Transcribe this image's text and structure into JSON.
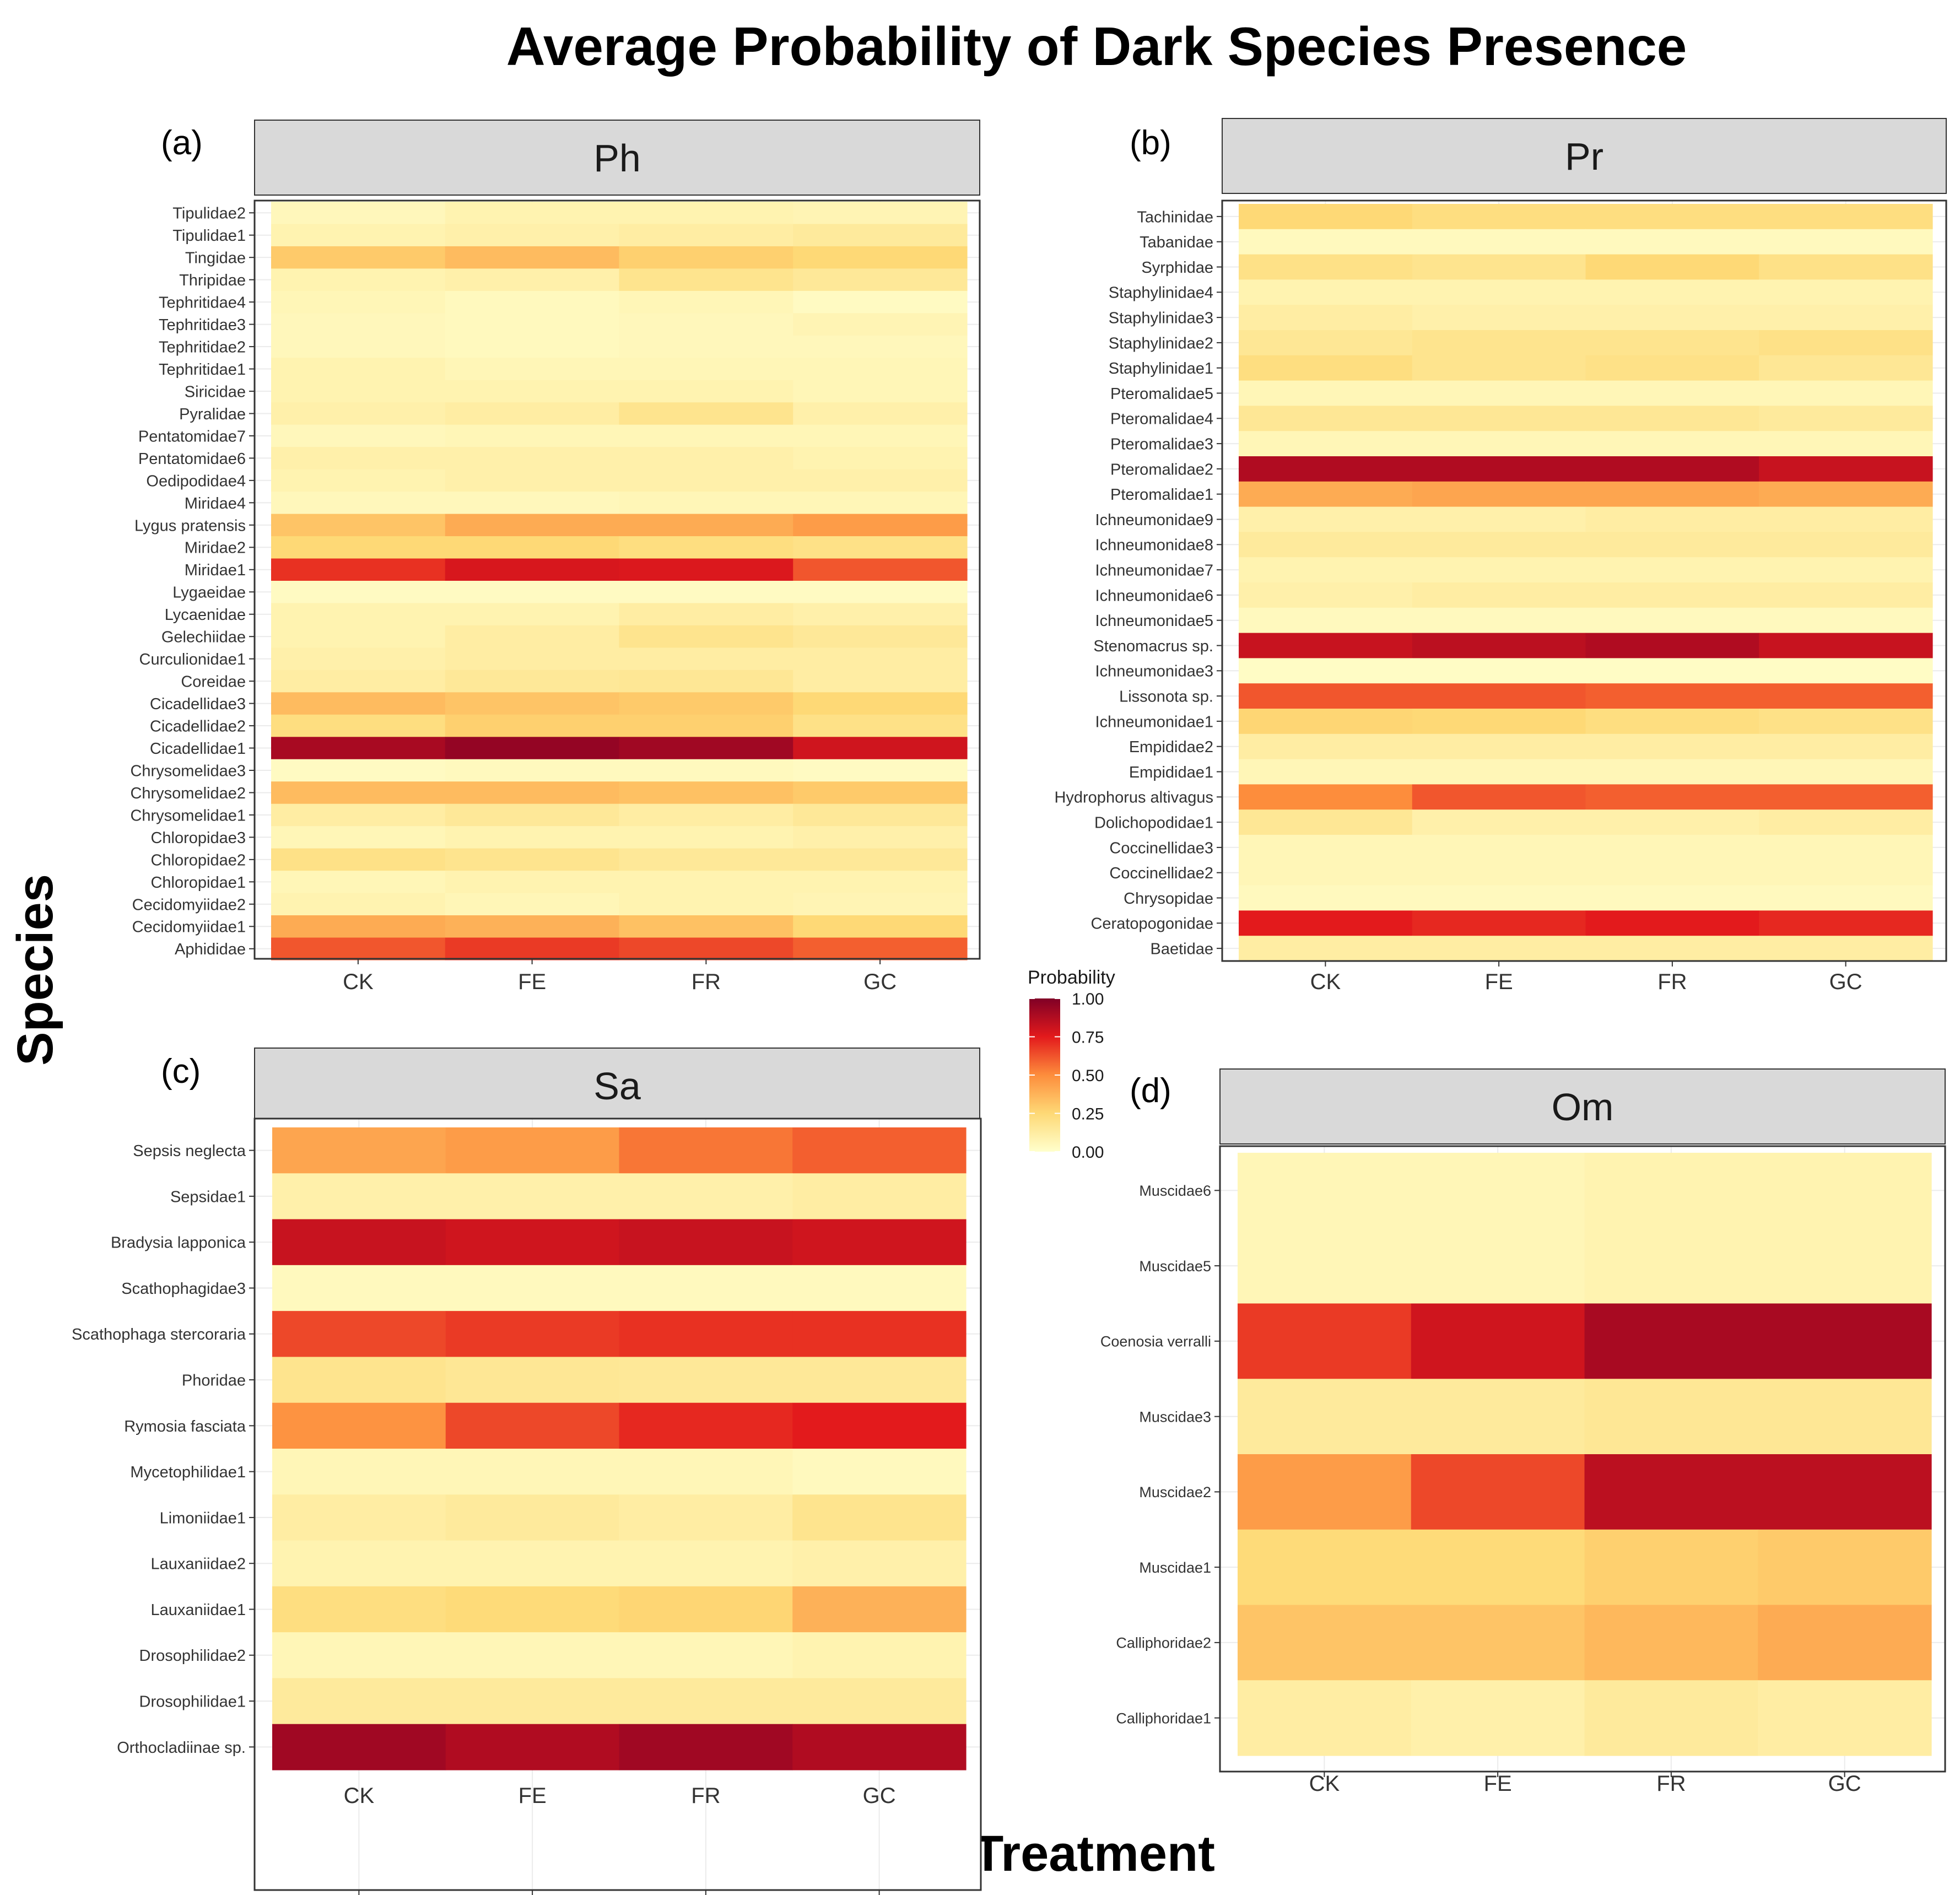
{
  "title": "Average Probability of Dark Species Presence",
  "ylabel": "Species",
  "xlabel": "Treatment",
  "legend": {
    "title": "Probability",
    "ticks": [
      "1.00",
      "0.75",
      "0.50",
      "0.25",
      "0.00"
    ]
  },
  "colors": {
    "low": "#ffffcc",
    "q1": "#fed976",
    "mid": "#fd8d3c",
    "q3": "#e31a1c",
    "high": "#800026",
    "strip": "#d9d9d9",
    "grid": "#ebebeb",
    "border": "#333333"
  },
  "chart_data": [
    {
      "type": "heatmap",
      "panel_label": "(a)",
      "title": "Ph",
      "xlabel": "Treatment",
      "ylabel": "Species",
      "categories": [
        "CK",
        "FE",
        "FR",
        "GC"
      ],
      "rows": [
        "Tipulidae2",
        "Tipulidae1",
        "Tingidae",
        "Thripidae",
        "Tephritidae4",
        "Tephritidae3",
        "Tephritidae2",
        "Tephritidae1",
        "Siricidae",
        "Pyralidae",
        "Pentatomidae7",
        "Pentatomidae6",
        "Oedipodidae4",
        "Miridae4",
        "Lygus pratensis",
        "Miridae2",
        "Miridae1",
        "Lygaeidae",
        "Lycaenidae",
        "Gelechiidae",
        "Curculionidae1",
        "Coreidae",
        "Cicadellidae3",
        "Cicadellidae2",
        "Cicadellidae1",
        "Chrysomelidae3",
        "Chrysomelidae2",
        "Chrysomelidae1",
        "Chloropidae3",
        "Chloropidae2",
        "Chloropidae1",
        "Cecidomyiidae2",
        "Cecidomyiidae1",
        "Aphididae"
      ],
      "values": [
        [
          0.05,
          0.08,
          0.08,
          0.07
        ],
        [
          0.08,
          0.1,
          0.12,
          0.14
        ],
        [
          0.3,
          0.35,
          0.28,
          0.25
        ],
        [
          0.08,
          0.1,
          0.18,
          0.15
        ],
        [
          0.06,
          0.04,
          0.06,
          0.03
        ],
        [
          0.05,
          0.04,
          0.05,
          0.07
        ],
        [
          0.05,
          0.04,
          0.05,
          0.05
        ],
        [
          0.08,
          0.06,
          0.06,
          0.06
        ],
        [
          0.08,
          0.08,
          0.08,
          0.06
        ],
        [
          0.1,
          0.12,
          0.18,
          0.1
        ],
        [
          0.05,
          0.06,
          0.06,
          0.06
        ],
        [
          0.1,
          0.1,
          0.1,
          0.08
        ],
        [
          0.08,
          0.1,
          0.1,
          0.1
        ],
        [
          0.05,
          0.05,
          0.06,
          0.06
        ],
        [
          0.32,
          0.4,
          0.4,
          0.45
        ],
        [
          0.25,
          0.25,
          0.22,
          0.2
        ],
        [
          0.7,
          0.78,
          0.77,
          0.62
        ],
        [
          0.03,
          0.03,
          0.03,
          0.03
        ],
        [
          0.08,
          0.08,
          0.12,
          0.1
        ],
        [
          0.08,
          0.12,
          0.18,
          0.15
        ],
        [
          0.1,
          0.12,
          0.12,
          0.12
        ],
        [
          0.12,
          0.15,
          0.16,
          0.12
        ],
        [
          0.35,
          0.32,
          0.3,
          0.25
        ],
        [
          0.22,
          0.28,
          0.28,
          0.2
        ],
        [
          0.9,
          0.95,
          0.92,
          0.8
        ],
        [
          0.03,
          0.04,
          0.04,
          0.03
        ],
        [
          0.35,
          0.35,
          0.33,
          0.3
        ],
        [
          0.12,
          0.15,
          0.12,
          0.15
        ],
        [
          0.06,
          0.08,
          0.08,
          0.1
        ],
        [
          0.2,
          0.18,
          0.15,
          0.15
        ],
        [
          0.06,
          0.08,
          0.08,
          0.08
        ],
        [
          0.08,
          0.06,
          0.08,
          0.07
        ],
        [
          0.4,
          0.38,
          0.33,
          0.25
        ],
        [
          0.62,
          0.68,
          0.65,
          0.6
        ]
      ]
    },
    {
      "type": "heatmap",
      "panel_label": "(b)",
      "title": "Pr",
      "xlabel": "Treatment",
      "ylabel": "Species",
      "categories": [
        "CK",
        "FE",
        "FR",
        "GC"
      ],
      "rows": [
        "Tachinidae",
        "Tabanidae",
        "Syrphidae",
        "Staphylinidae4",
        "Staphylinidae3",
        "Staphylinidae2",
        "Staphylinidae1",
        "Pteromalidae5",
        "Pteromalidae4",
        "Pteromalidae3",
        "Pteromalidae2",
        "Pteromalidae1",
        "Ichneumonidae9",
        "Ichneumonidae8",
        "Ichneumonidae7",
        "Ichneumonidae6",
        "Ichneumonidae5",
        "Stenomacrus sp.",
        "Ichneumonidae3",
        "Lissonota sp.",
        "Ichneumonidae1",
        "Empididae2",
        "Empididae1",
        "Hydrophorus altivagus",
        "Dolichopodidae1",
        "Coccinellidae3",
        "Coccinellidae2",
        "Chrysopidae",
        "Ceratopogonidae",
        "Baetidae"
      ],
      "values": [
        [
          0.25,
          0.22,
          0.22,
          0.22
        ],
        [
          0.04,
          0.04,
          0.04,
          0.04
        ],
        [
          0.2,
          0.18,
          0.25,
          0.2
        ],
        [
          0.08,
          0.08,
          0.08,
          0.08
        ],
        [
          0.12,
          0.1,
          0.1,
          0.1
        ],
        [
          0.16,
          0.18,
          0.18,
          0.2
        ],
        [
          0.22,
          0.18,
          0.2,
          0.16
        ],
        [
          0.06,
          0.06,
          0.06,
          0.06
        ],
        [
          0.16,
          0.16,
          0.16,
          0.14
        ],
        [
          0.06,
          0.06,
          0.06,
          0.06
        ],
        [
          0.88,
          0.88,
          0.88,
          0.82
        ],
        [
          0.4,
          0.42,
          0.42,
          0.4
        ],
        [
          0.1,
          0.1,
          0.12,
          0.12
        ],
        [
          0.14,
          0.14,
          0.14,
          0.14
        ],
        [
          0.08,
          0.08,
          0.08,
          0.08
        ],
        [
          0.1,
          0.12,
          0.12,
          0.12
        ],
        [
          0.04,
          0.04,
          0.04,
          0.04
        ],
        [
          0.82,
          0.85,
          0.88,
          0.82
        ],
        [
          0.02,
          0.02,
          0.02,
          0.02
        ],
        [
          0.62,
          0.62,
          0.6,
          0.6
        ],
        [
          0.26,
          0.25,
          0.22,
          0.2
        ],
        [
          0.12,
          0.12,
          0.12,
          0.12
        ],
        [
          0.06,
          0.06,
          0.06,
          0.06
        ],
        [
          0.5,
          0.62,
          0.6,
          0.6
        ],
        [
          0.16,
          0.1,
          0.1,
          0.12
        ],
        [
          0.06,
          0.06,
          0.06,
          0.06
        ],
        [
          0.06,
          0.06,
          0.06,
          0.06
        ],
        [
          0.04,
          0.04,
          0.04,
          0.04
        ],
        [
          0.75,
          0.72,
          0.75,
          0.72
        ],
        [
          0.12,
          0.12,
          0.12,
          0.12
        ]
      ]
    },
    {
      "type": "heatmap",
      "panel_label": "(c)",
      "title": "Sa",
      "xlabel": "Treatment",
      "ylabel": "Species",
      "categories": [
        "CK",
        "FE",
        "FR",
        "GC"
      ],
      "rows": [
        "Sepsis neglecta",
        "Sepsidae1",
        "Bradysia lapponica",
        "Scathophagidae3",
        "Scathophaga stercoraria",
        "Phoridae",
        "Rymosia fasciata",
        "Mycetophilidae1",
        "Limoniidae1",
        "Lauxaniidae2",
        "Lauxaniidae1",
        "Drosophilidae2",
        "Drosophilidae1",
        "Orthocladiinae sp."
      ],
      "values": [
        [
          0.42,
          0.45,
          0.55,
          0.6
        ],
        [
          0.1,
          0.1,
          0.1,
          0.12
        ],
        [
          0.82,
          0.8,
          0.82,
          0.8
        ],
        [
          0.04,
          0.04,
          0.04,
          0.04
        ],
        [
          0.65,
          0.68,
          0.7,
          0.7
        ],
        [
          0.18,
          0.16,
          0.15,
          0.15
        ],
        [
          0.48,
          0.65,
          0.72,
          0.75
        ],
        [
          0.06,
          0.06,
          0.06,
          0.04
        ],
        [
          0.12,
          0.14,
          0.12,
          0.18
        ],
        [
          0.08,
          0.08,
          0.08,
          0.1
        ],
        [
          0.22,
          0.24,
          0.26,
          0.38
        ],
        [
          0.06,
          0.06,
          0.06,
          0.08
        ],
        [
          0.14,
          0.14,
          0.14,
          0.14
        ],
        [
          0.92,
          0.88,
          0.92,
          0.88
        ]
      ]
    },
    {
      "type": "heatmap",
      "panel_label": "(d)",
      "title": "Om",
      "xlabel": "Treatment",
      "ylabel": "Species",
      "categories": [
        "CK",
        "FE",
        "FR",
        "GC"
      ],
      "rows": [
        "Muscidae6",
        "Muscidae5",
        "Coenosia verralli",
        "Muscidae3",
        "Muscidae2",
        "Muscidae1",
        "Calliphoridae2",
        "Calliphoridae1"
      ],
      "values": [
        [
          0.06,
          0.06,
          0.08,
          0.08
        ],
        [
          0.06,
          0.06,
          0.08,
          0.08
        ],
        [
          0.68,
          0.8,
          0.9,
          0.9
        ],
        [
          0.14,
          0.14,
          0.16,
          0.16
        ],
        [
          0.45,
          0.65,
          0.85,
          0.85
        ],
        [
          0.24,
          0.24,
          0.28,
          0.3
        ],
        [
          0.32,
          0.32,
          0.36,
          0.4
        ],
        [
          0.12,
          0.1,
          0.14,
          0.12
        ]
      ]
    }
  ]
}
